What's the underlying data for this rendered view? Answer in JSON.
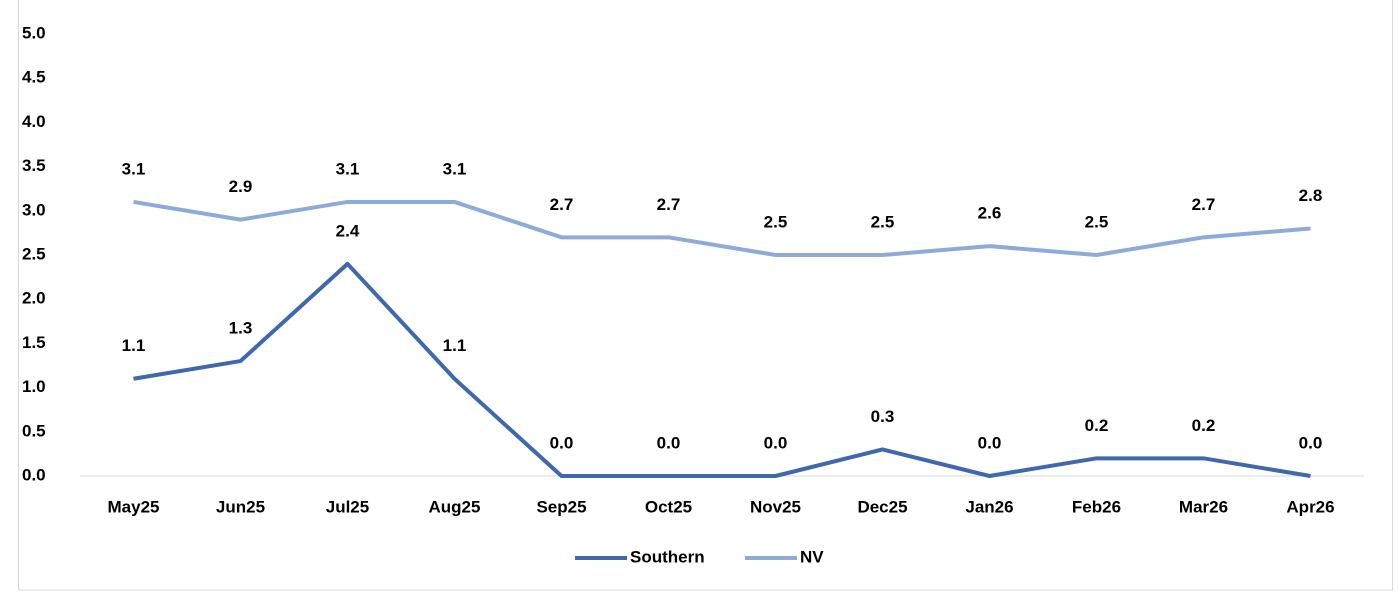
{
  "chart_data": {
    "type": "line",
    "categories": [
      "May25",
      "Jun25",
      "Jul25",
      "Aug25",
      "Sep25",
      "Oct25",
      "Nov25",
      "Dec25",
      "Jan26",
      "Feb26",
      "Mar26",
      "Apr26"
    ],
    "series": [
      {
        "name": "Southern",
        "color": "#4068ad",
        "values": [
          1.1,
          1.3,
          2.4,
          1.1,
          0,
          0,
          0,
          0.3,
          0,
          0.2,
          0.2,
          0
        ],
        "value_labels": [
          "1.1",
          "1.3",
          "2.4",
          "1.1",
          "0.0",
          "0.0",
          "0.0",
          "0.3",
          "0.0",
          "0.2",
          "0.2",
          "0.0"
        ]
      },
      {
        "name": "NV",
        "color": "#8eaadb",
        "values": [
          3.1,
          2.9,
          3.1,
          3.1,
          2.7,
          2.7,
          2.5,
          2.5,
          2.6,
          2.5,
          2.7,
          2.8
        ],
        "value_labels": [
          "3.1",
          "2.9",
          "3.1",
          "3.1",
          "2.7",
          "2.7",
          "2.5",
          "2.5",
          "2.6",
          "2.5",
          "2.7",
          "2.8"
        ]
      }
    ],
    "ylim": [
      0,
      5
    ],
    "yticks": [
      {
        "value": 0,
        "label": "0.0"
      },
      0.5,
      {
        "value": 1,
        "label": "1.0"
      },
      1.5,
      {
        "value": 2,
        "label": "2.0"
      },
      2.5,
      {
        "value": 3,
        "label": "3.0"
      },
      3.5,
      {
        "value": 4,
        "label": "4.0"
      },
      4.5,
      {
        "value": 5,
        "label": "5.0"
      }
    ],
    "legend": "bottom"
  }
}
